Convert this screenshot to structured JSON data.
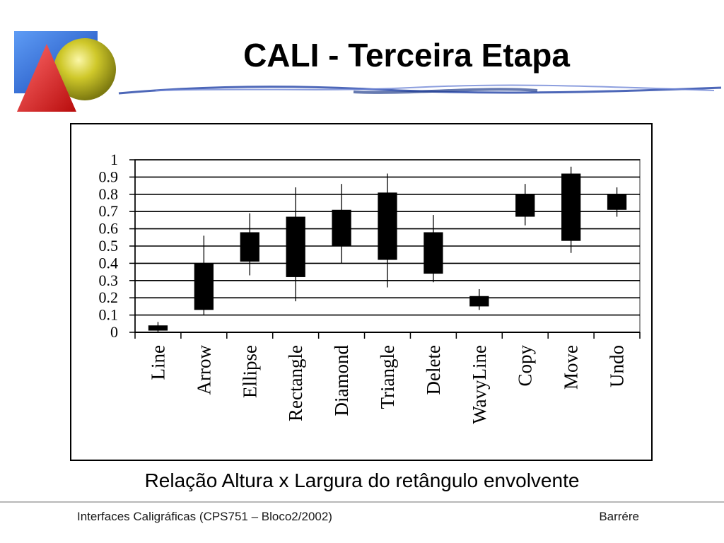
{
  "slide": {
    "title": "CALI - Terceira Etapa",
    "caption": "Relação Altura x Largura do retângulo envolvente",
    "footer_left": "Interfaces Caligráficas (CPS751 – Bloco2/2002)",
    "footer_right": "Barrére"
  },
  "colors": {
    "logo_blue": "#2f6fd8",
    "logo_yellow": "#c9c21a",
    "logo_red": "#e32020",
    "swoosh_blue": "#3a56b0",
    "box_fill": "#000000",
    "grid": "#000000",
    "plot_border": "#999999"
  },
  "chart_data": {
    "type": "candlestick",
    "title": "",
    "xlabel": "",
    "ylabel": "",
    "ylim": [
      0,
      1
    ],
    "yticks": [
      "0",
      "0.1",
      "0.2",
      "0.3",
      "0.4",
      "0.5",
      "0.6",
      "0.7",
      "0.8",
      "0.9",
      "1"
    ],
    "grid": true,
    "categories": [
      "Line",
      "Arrow",
      "Ellipse",
      "Rectangle",
      "Diamond",
      "Triangle",
      "Delete",
      "WavyLine",
      "Copy",
      "Move",
      "Undo"
    ],
    "low": [
      0.0,
      0.1,
      0.33,
      0.18,
      0.4,
      0.26,
      0.29,
      0.13,
      0.62,
      0.46,
      0.67
    ],
    "box_bottom": [
      0.01,
      0.13,
      0.41,
      0.32,
      0.5,
      0.42,
      0.34,
      0.15,
      0.67,
      0.53,
      0.71
    ],
    "box_top": [
      0.04,
      0.4,
      0.58,
      0.67,
      0.71,
      0.81,
      0.58,
      0.21,
      0.8,
      0.92,
      0.8
    ],
    "high": [
      0.06,
      0.56,
      0.69,
      0.84,
      0.86,
      0.92,
      0.68,
      0.25,
      0.86,
      0.96,
      0.84
    ]
  }
}
